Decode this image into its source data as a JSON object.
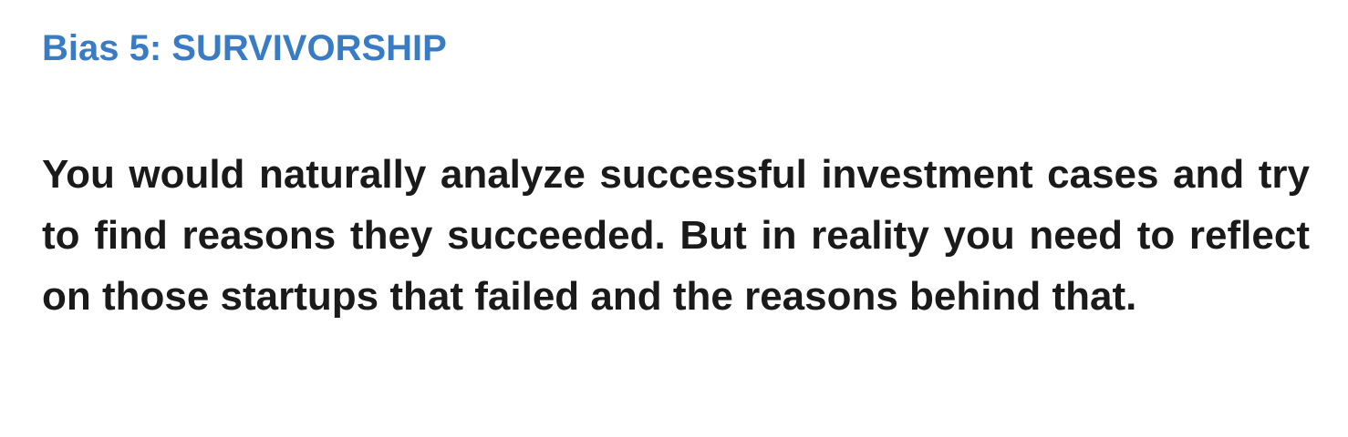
{
  "slide": {
    "heading": "Bias 5: SURVIVORSHIP",
    "body": "You would naturally analyze successful investment cases and try to find reasons they succeeded. But in reality you need to reflect on those startups that failed and the reasons behind that."
  },
  "colors": {
    "heading": "#3a7cc3",
    "body_text": "#1a1a1a",
    "background": "#ffffff"
  }
}
